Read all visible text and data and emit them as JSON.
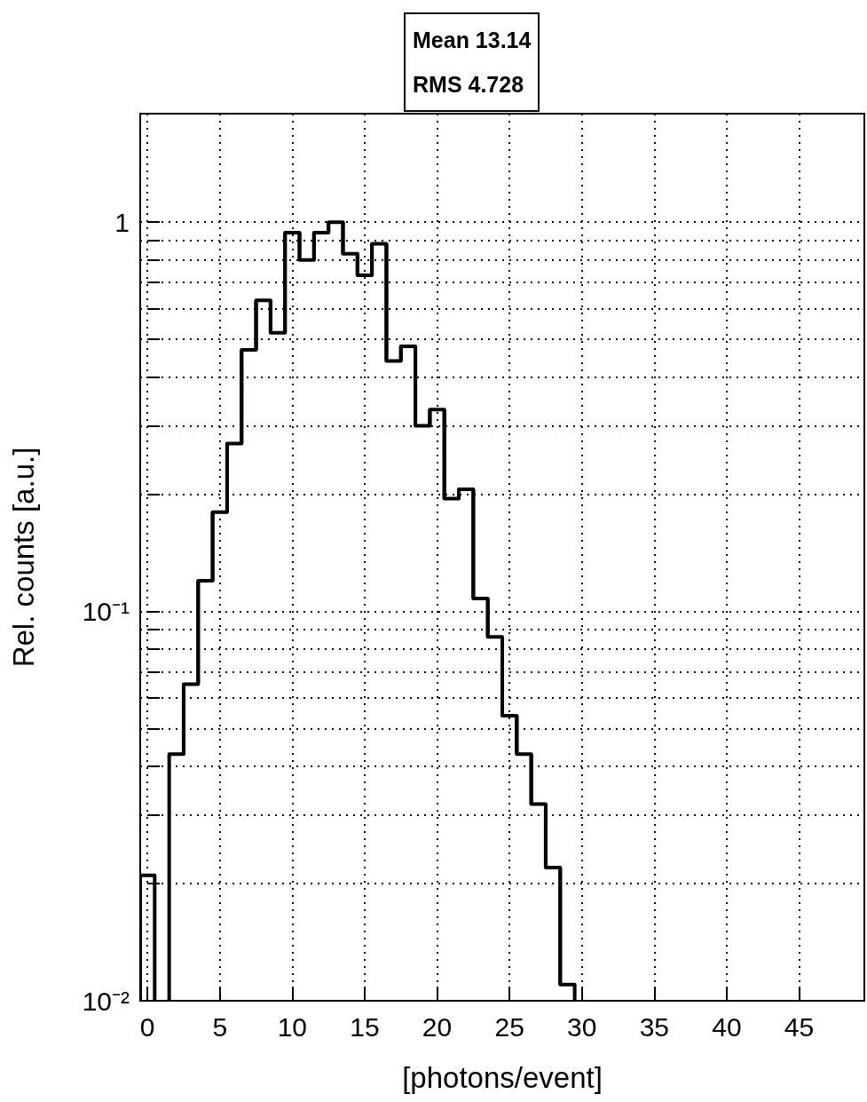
{
  "chart_data": {
    "type": "histogram",
    "xlabel": "[photons/event]",
    "ylabel": "Rel. counts [a.u.]",
    "annotations": [
      "Mean 13.14",
      "RMS 4.728"
    ],
    "bins": [
      -0.5,
      0.5,
      1.5,
      2.5,
      3.5,
      4.5,
      5.5,
      6.5,
      7.5,
      8.5,
      9.5,
      10.5,
      11.5,
      12.5,
      13.5,
      14.5,
      15.5,
      16.5,
      17.5,
      18.5,
      19.5,
      20.5,
      21.5,
      22.5,
      23.5,
      24.5,
      25.5,
      26.5,
      27.5,
      28.5,
      29.5
    ],
    "values": [
      0.021,
      null,
      0.043,
      0.065,
      0.12,
      0.18,
      0.27,
      0.47,
      0.63,
      0.52,
      0.94,
      0.8,
      0.94,
      1.0,
      0.83,
      0.73,
      0.88,
      0.44,
      0.48,
      0.3,
      0.33,
      0.195,
      0.206,
      0.108,
      0.086,
      0.054,
      0.043,
      0.032,
      0.022,
      0.011
    ],
    "color": "#000000",
    "log": "y",
    "grid": true,
    "xlim": [
      -0.5,
      49.5
    ],
    "xticks": [
      0,
      5,
      10,
      15,
      20,
      25,
      30,
      35,
      40,
      45
    ],
    "ylim": [
      0.01,
      1.9
    ],
    "yticks": [
      {
        "value": 0.01,
        "label": "10⁻²"
      },
      {
        "value": 0.02,
        "label": null
      },
      {
        "value": 0.03,
        "label": null
      },
      {
        "value": 0.04,
        "label": null
      },
      {
        "value": 0.05,
        "label": null
      },
      {
        "value": 0.06,
        "label": null
      },
      {
        "value": 0.07,
        "label": null
      },
      {
        "value": 0.08,
        "label": null
      },
      {
        "value": 0.09,
        "label": null
      },
      {
        "value": 0.1,
        "label": "10⁻¹"
      },
      {
        "value": 0.2,
        "label": null
      },
      {
        "value": 0.3,
        "label": null
      },
      {
        "value": 0.4,
        "label": null
      },
      {
        "value": 0.5,
        "label": null
      },
      {
        "value": 0.6,
        "label": null
      },
      {
        "value": 0.7,
        "label": null
      },
      {
        "value": 0.8,
        "label": null
      },
      {
        "value": 0.9,
        "label": null
      },
      {
        "value": 1,
        "label": "1"
      }
    ]
  }
}
